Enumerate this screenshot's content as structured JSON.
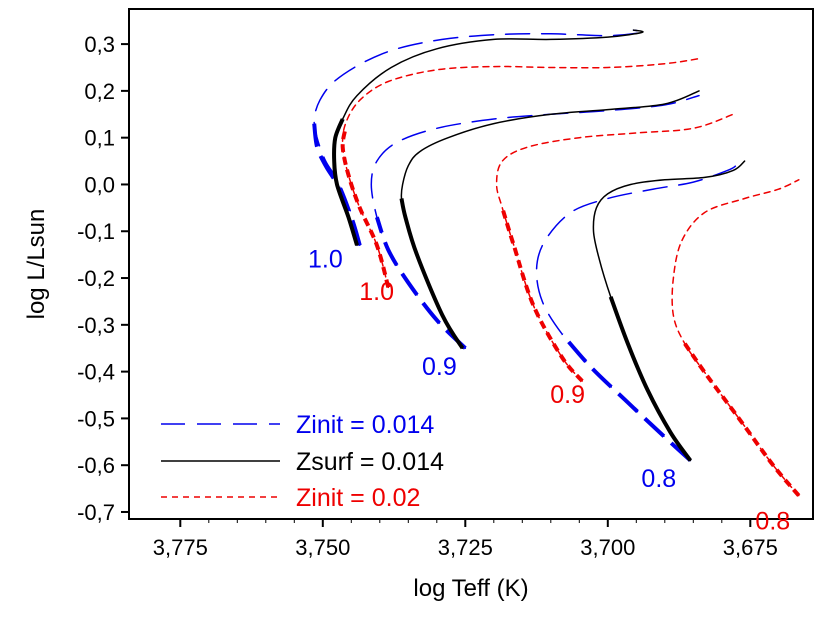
{
  "chart_data": {
    "type": "line",
    "title": "",
    "xlabel": "log Teff (K)",
    "ylabel": "log L/Lsun",
    "xlim": [
      3.784,
      3.664
    ],
    "ylim": [
      -0.715,
      0.375
    ],
    "x_reversed": true,
    "grid": false,
    "x_ticks": [
      3.775,
      3.75,
      3.725,
      3.7,
      3.675
    ],
    "x_tick_labels": [
      "3,775",
      "3,750",
      "3,725",
      "3,700",
      "3,675"
    ],
    "y_ticks": [
      0.3,
      0.2,
      0.1,
      0.0,
      -0.1,
      -0.2,
      -0.3,
      -0.4,
      -0.5,
      -0.6,
      -0.7
    ],
    "y_tick_labels": [
      "0,3",
      "0,2",
      "0,1",
      "0,0",
      "-0,1",
      "-0,2",
      "-0,3",
      "-0,4",
      "-0,5",
      "-0,6",
      "-0,7"
    ],
    "colors": {
      "blue": "#0000ee",
      "black": "#000000",
      "red": "#ee0000"
    },
    "legend": {
      "position": "bottom-left",
      "entries": [
        {
          "label": "Zinit = 0.014",
          "series": "zinit_0014",
          "color": "#0000ee",
          "style": "long-dash"
        },
        {
          "label": "Zsurf = 0.014",
          "series": "zsurf_0014",
          "color": "#000000",
          "style": "solid"
        },
        {
          "label": "Zinit = 0.02",
          "series": "zinit_002",
          "color": "#ee0000",
          "style": "short-dash"
        }
      ]
    },
    "series": [
      {
        "name": "Zinit = 0.014",
        "mass": "1.0",
        "group": "zinit_0014",
        "x": [
          3.7435,
          3.7445,
          3.747,
          3.7495,
          3.751,
          3.7515,
          3.7505,
          3.748,
          3.743,
          3.737,
          3.729,
          3.72,
          3.71,
          3.7,
          3.694,
          3.6955
        ],
        "y": [
          -0.13,
          -0.08,
          0.0,
          0.05,
          0.1,
          0.14,
          0.18,
          0.22,
          0.26,
          0.29,
          0.31,
          0.32,
          0.322,
          0.318,
          0.325,
          0.33
        ],
        "thick_x": [
          3.7435,
          3.745,
          3.7475,
          3.7495,
          3.751,
          3.7515
        ],
        "thick_y": [
          -0.13,
          -0.07,
          0.0,
          0.04,
          0.08,
          0.13
        ]
      },
      {
        "name": "Zsurf = 0.014",
        "mass": "1.0",
        "group": "zsurf_0014",
        "x": [
          3.744,
          3.7455,
          3.7475,
          3.748,
          3.7478,
          3.7465,
          3.744,
          3.738,
          3.73,
          3.72,
          3.71,
          3.7,
          3.694,
          3.6955
        ],
        "y": [
          -0.13,
          -0.07,
          0.0,
          0.05,
          0.1,
          0.14,
          0.19,
          0.25,
          0.29,
          0.31,
          0.31,
          0.315,
          0.325,
          0.33
        ],
        "thick_x": [
          3.744,
          3.7455,
          3.7475,
          3.748,
          3.7478,
          3.7465
        ],
        "thick_y": [
          -0.13,
          -0.07,
          0.0,
          0.05,
          0.1,
          0.14
        ]
      },
      {
        "name": "Zinit = 0.02",
        "mass": "1.0",
        "group": "zinit_002",
        "x": [
          3.7385,
          3.7405,
          3.7435,
          3.7455,
          3.7465,
          3.746,
          3.7435,
          3.7385,
          3.73,
          3.72,
          3.71,
          3.7,
          3.69,
          3.6835
        ],
        "y": [
          -0.22,
          -0.13,
          -0.05,
          0.02,
          0.08,
          0.13,
          0.18,
          0.22,
          0.245,
          0.252,
          0.25,
          0.25,
          0.258,
          0.27
        ],
        "thick_x": [
          3.7385,
          3.7405,
          3.7435,
          3.7455,
          3.7465,
          3.746
        ],
        "thick_y": [
          -0.22,
          -0.13,
          -0.05,
          0.02,
          0.08,
          0.12
        ]
      },
      {
        "name": "Zinit = 0.014",
        "mass": "0.9",
        "group": "zinit_0014",
        "x": [
          3.725,
          3.73,
          3.735,
          3.7385,
          3.7405,
          3.7415,
          3.7405,
          3.737,
          3.73,
          3.72,
          3.71,
          3.7,
          3.69,
          3.684
        ],
        "y": [
          -0.35,
          -0.29,
          -0.21,
          -0.14,
          -0.07,
          0.0,
          0.05,
          0.09,
          0.12,
          0.14,
          0.15,
          0.158,
          0.17,
          0.19
        ],
        "thick_x": [
          3.725,
          3.73,
          3.735,
          3.7385,
          3.7405
        ],
        "thick_y": [
          -0.35,
          -0.29,
          -0.21,
          -0.14,
          -0.07
        ]
      },
      {
        "name": "Zsurf = 0.014",
        "mass": "0.9",
        "group": "zsurf_0014",
        "x": [
          3.7255,
          3.729,
          3.7335,
          3.7355,
          3.7362,
          3.736,
          3.735,
          3.733,
          3.728,
          3.72,
          3.71,
          3.7,
          3.69,
          3.684
        ],
        "y": [
          -0.35,
          -0.28,
          -0.15,
          -0.07,
          -0.03,
          0.0,
          0.04,
          0.07,
          0.1,
          0.13,
          0.15,
          0.16,
          0.172,
          0.2
        ],
        "thick_x": [
          3.7255,
          3.729,
          3.7335,
          3.7355,
          3.7362
        ],
        "thick_y": [
          -0.35,
          -0.28,
          -0.15,
          -0.07,
          -0.03
        ]
      },
      {
        "name": "Zinit = 0.02",
        "mass": "0.9",
        "group": "zinit_002",
        "x": [
          3.7045,
          3.708,
          3.713,
          3.7165,
          3.7185,
          3.7195,
          3.7185,
          3.714,
          3.705,
          3.695,
          3.685,
          3.678
        ],
        "y": [
          -0.42,
          -0.37,
          -0.26,
          -0.13,
          -0.05,
          0.0,
          0.05,
          0.08,
          0.1,
          0.11,
          0.12,
          0.15
        ],
        "thick_x": [
          3.7045,
          3.708,
          3.713,
          3.7165,
          3.7185
        ],
        "thick_y": [
          -0.42,
          -0.37,
          -0.26,
          -0.13,
          -0.05
        ]
      },
      {
        "name": "Zinit = 0.014",
        "mass": "0.8",
        "group": "zinit_0014",
        "x": [
          3.6855,
          3.69,
          3.697,
          3.703,
          3.708,
          3.7115,
          3.7125,
          3.711,
          3.7065,
          3.7,
          3.692,
          3.685,
          3.679,
          3.6775
        ],
        "y": [
          -0.59,
          -0.54,
          -0.46,
          -0.39,
          -0.32,
          -0.25,
          -0.18,
          -0.12,
          -0.06,
          -0.03,
          -0.01,
          0.005,
          0.03,
          0.04
        ],
        "thick_x": [
          3.6855,
          3.69,
          3.697,
          3.703,
          3.708
        ],
        "thick_y": [
          -0.59,
          -0.54,
          -0.46,
          -0.39,
          -0.32
        ]
      },
      {
        "name": "Zsurf = 0.014",
        "mass": "0.8",
        "group": "zsurf_0014",
        "x": [
          3.6855,
          3.689,
          3.693,
          3.6965,
          3.6995,
          3.7015,
          3.7025,
          3.702,
          3.7,
          3.696,
          3.69,
          3.683,
          3.678,
          3.676
        ],
        "y": [
          -0.59,
          -0.53,
          -0.44,
          -0.34,
          -0.24,
          -0.16,
          -0.1,
          -0.05,
          -0.02,
          0.0,
          0.01,
          0.015,
          0.03,
          0.05
        ],
        "thick_x": [
          3.6855,
          3.689,
          3.693,
          3.6965,
          3.6995
        ],
        "thick_y": [
          -0.59,
          -0.53,
          -0.44,
          -0.34,
          -0.24
        ]
      },
      {
        "name": "Zinit = 0.02",
        "mass": "0.8",
        "group": "zinit_002",
        "x": [
          3.6665,
          3.671,
          3.677,
          3.6825,
          3.6865,
          3.6885,
          3.6885,
          3.687,
          3.683,
          3.676,
          3.67,
          3.6665
        ],
        "y": [
          -0.665,
          -0.6,
          -0.5,
          -0.41,
          -0.34,
          -0.28,
          -0.2,
          -0.12,
          -0.06,
          -0.03,
          -0.01,
          0.01
        ],
        "thick_x": [
          3.6665,
          3.671,
          3.677,
          3.6825,
          3.6865
        ],
        "thick_y": [
          -0.665,
          -0.6,
          -0.5,
          -0.41,
          -0.34
        ]
      }
    ],
    "annotations": [
      {
        "text": "1.0",
        "x": 3.7465,
        "y": -0.13,
        "color": "#0000ee",
        "anchor": "end"
      },
      {
        "text": "1.0",
        "x": 3.7375,
        "y": -0.2,
        "color": "#ee0000",
        "anchor": "end"
      },
      {
        "text": "0.9",
        "x": 3.7265,
        "y": -0.36,
        "color": "#0000ee",
        "anchor": "end"
      },
      {
        "text": "0.9",
        "x": 3.704,
        "y": -0.42,
        "color": "#ee0000",
        "anchor": "end"
      },
      {
        "text": "0.8",
        "x": 3.688,
        "y": -0.6,
        "color": "#0000ee",
        "anchor": "end"
      },
      {
        "text": "0.8",
        "x": 3.668,
        "y": -0.69,
        "color": "#ee0000",
        "anchor": "end"
      }
    ]
  }
}
